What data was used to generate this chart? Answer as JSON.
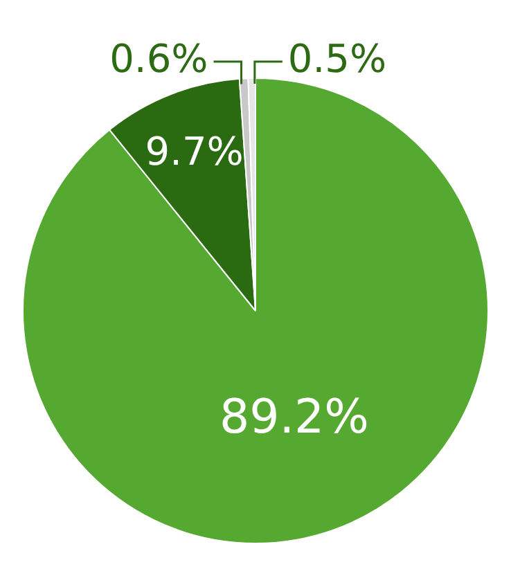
{
  "chart_data": {
    "type": "pie",
    "categories": [
      null,
      null,
      null,
      null
    ],
    "values": [
      89.2,
      9.7,
      0.6,
      0.5
    ],
    "colors": [
      "#55a930",
      "#2a6b12",
      "#c8c8c8",
      "#e6e6e6"
    ],
    "value_labels": [
      "89.2%",
      "9.7%",
      "0.6%",
      "0.5%"
    ],
    "legend": false
  }
}
